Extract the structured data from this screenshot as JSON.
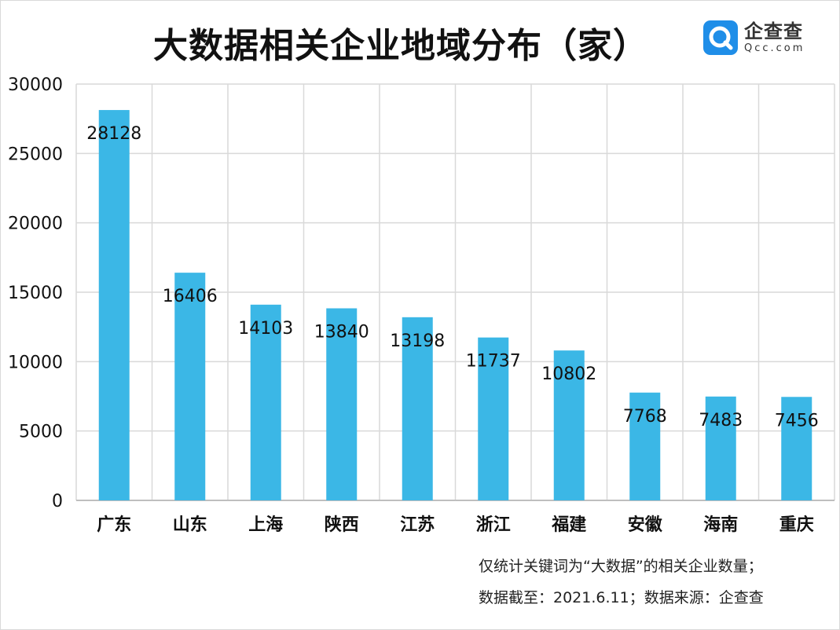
{
  "title": "大数据相关企业地域分布（家）",
  "logo": {
    "name_cn": "企查查",
    "name_en": "Qcc.com",
    "icon": "qcc-logo-icon"
  },
  "notes": [
    "仅统计关键词为“大数据”的相关企业数量；",
    "数据截至：2021.6.11；数据来源：企查查"
  ],
  "chart_data": {
    "type": "bar",
    "title": "大数据相关企业地域分布（家）",
    "categories": [
      "广东",
      "山东",
      "上海",
      "陕西",
      "江苏",
      "浙江",
      "福建",
      "安徽",
      "海南",
      "重庆"
    ],
    "values": [
      28128,
      16406,
      14103,
      13840,
      13198,
      11737,
      10802,
      7768,
      7483,
      7456
    ],
    "ylim": [
      0,
      30000
    ],
    "yticks": [
      0,
      5000,
      10000,
      15000,
      20000,
      25000,
      30000
    ],
    "grid": true,
    "show_data_labels": true,
    "colors": {
      "bar": "#3bb7e6",
      "grid": "#d9d9d9",
      "axis": "#bfbfbf",
      "text": "#111111"
    }
  }
}
